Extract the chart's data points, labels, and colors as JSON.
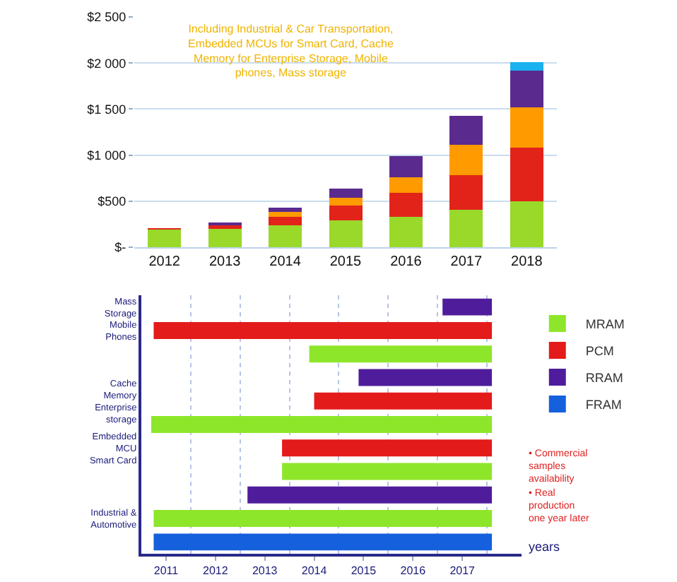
{
  "chart_data": [
    {
      "type": "bar",
      "stacked": true,
      "categories": [
        "2012",
        "2013",
        "2014",
        "2015",
        "2016",
        "2017",
        "2018"
      ],
      "series": [
        {
          "color": "#9ad82a",
          "values": [
            190,
            200,
            240,
            290,
            330,
            410,
            500
          ]
        },
        {
          "color": "#e2231a",
          "values": [
            20,
            40,
            90,
            160,
            260,
            370,
            580
          ]
        },
        {
          "color": "#ff9a00",
          "values": [
            null,
            null,
            50,
            90,
            170,
            330,
            440
          ]
        },
        {
          "color": "#5b2a8e",
          "values": [
            null,
            30,
            50,
            100,
            230,
            320,
            400
          ]
        },
        {
          "color": "#1ab2ee",
          "values": [
            null,
            null,
            null,
            null,
            null,
            null,
            90
          ]
        }
      ],
      "ylim": [
        0,
        2500
      ],
      "yticks": [
        {
          "value": 0,
          "label": "$-"
        },
        {
          "value": 500,
          "label": "$500"
        },
        {
          "value": 1000,
          "label": "$1 000"
        },
        {
          "value": 1500,
          "label": "$1 500"
        },
        {
          "value": 2000,
          "label": "$2 000"
        },
        {
          "value": 2500,
          "label": "$2 500"
        }
      ],
      "grid": true,
      "legend": false,
      "annotations": [
        "Including Industrial & Car Transportation,\nEmbedded MCUs for Smart Card, Cache\nMemory for Enterprise Storage, Mobile\nphones, Mass storage"
      ]
    },
    {
      "type": "bar",
      "orientation": "horizontal",
      "xlabel": "years",
      "categories": [
        "Mass\nStorage",
        "Mobile\nPhones",
        null,
        null,
        "Cache\nMemory\nEnterprise\nstorage",
        null,
        "Embedded\nMCU\nSmart Card",
        null,
        null,
        "Industrial &\nAutomotive",
        null
      ],
      "series": [
        {
          "name": "MRAM",
          "color": "#8ee62a",
          "values": [
            null,
            null,
            3.7,
            null,
            null,
            6.9,
            null,
            4.25,
            null,
            6.85,
            null
          ],
          "base": [
            null,
            null,
            2013.9,
            null,
            null,
            2010.7,
            null,
            2013.35,
            null,
            2010.75,
            null
          ]
        },
        {
          "name": "PCM",
          "color": "#e41b1b",
          "values": [
            null,
            6.85,
            null,
            null,
            3.6,
            null,
            4.25,
            null,
            null,
            null,
            null
          ],
          "base": [
            null,
            2010.75,
            null,
            null,
            2014.0,
            null,
            2013.35,
            null,
            null,
            null,
            null
          ]
        },
        {
          "name": "RRAM",
          "color": "#4f1d9c",
          "values": [
            1.0,
            null,
            null,
            2.7,
            null,
            null,
            null,
            null,
            4.95,
            null,
            null
          ],
          "base": [
            2016.6,
            null,
            null,
            2014.9,
            null,
            null,
            null,
            null,
            2012.65,
            null,
            null
          ]
        },
        {
          "name": "FRAM",
          "color": "#1560dc",
          "values": [
            null,
            null,
            null,
            null,
            null,
            null,
            null,
            null,
            null,
            null,
            6.85
          ],
          "base": [
            null,
            null,
            null,
            null,
            null,
            null,
            null,
            null,
            null,
            null,
            2010.75
          ]
        }
      ],
      "xlim": [
        2010.5,
        2018.2
      ],
      "xticks": [
        2011,
        2012,
        2013,
        2014,
        2015,
        2016,
        2017,
        {
          "value": 2011.5,
          "label": null
        },
        {
          "value": 2012.5,
          "label": null
        },
        {
          "value": 2013.5,
          "label": null
        },
        {
          "value": 2014.5,
          "label": null
        },
        {
          "value": 2015.5,
          "label": null
        },
        {
          "value": 2016.5,
          "label": null
        },
        {
          "value": 2017.5,
          "label": null
        }
      ],
      "grid": "x",
      "legend": "right",
      "annotations": [
        "• Commercial\nsamples\navailability",
        "• Real\nproduction\none year later"
      ]
    }
  ]
}
